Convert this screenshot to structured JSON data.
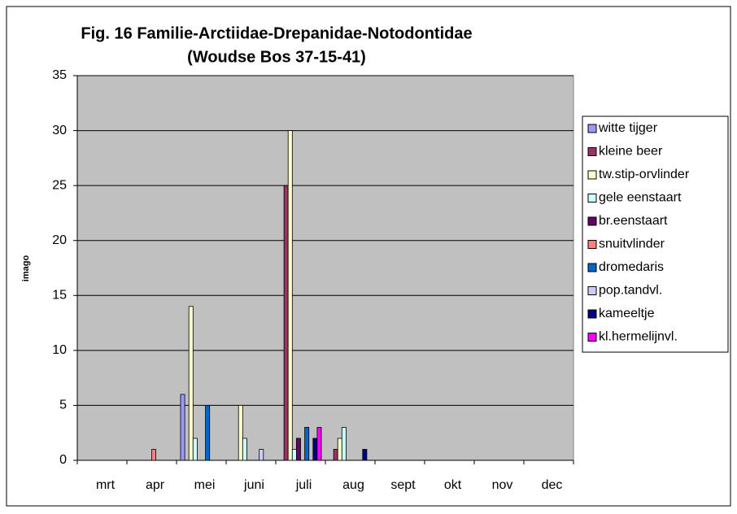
{
  "chart_data": {
    "type": "bar",
    "title": "Fig. 16 Familie-Arctiidae-Drepanidae-Notodontidae",
    "subtitle": "(Woudse Bos 37-15-41)",
    "y_label": "imago",
    "categories": [
      "mrt",
      "apr",
      "mei",
      "juni",
      "juli",
      "aug",
      "sept",
      "okt",
      "nov",
      "dec"
    ],
    "series": [
      {
        "name": "witte tijger",
        "color": "#9999ff",
        "values": [
          0,
          0,
          6,
          0,
          0,
          0,
          0,
          0,
          0,
          0
        ]
      },
      {
        "name": "kleine beer",
        "color": "#993366",
        "values": [
          0,
          0,
          0,
          0,
          25,
          1,
          0,
          0,
          0,
          0
        ]
      },
      {
        "name": "tw.stip-orvlinder",
        "color": "#ffffcc",
        "values": [
          0,
          0,
          14,
          5,
          30,
          2,
          0,
          0,
          0,
          0
        ]
      },
      {
        "name": "gele eenstaart",
        "color": "#ccffff",
        "values": [
          0,
          0,
          2,
          2,
          1,
          3,
          0,
          0,
          0,
          0
        ]
      },
      {
        "name": "br.eenstaart",
        "color": "#660066",
        "values": [
          0,
          0,
          0,
          0,
          2,
          0,
          0,
          0,
          0,
          0
        ]
      },
      {
        "name": "snuitvlinder",
        "color": "#ff8080",
        "values": [
          0,
          1,
          0,
          0,
          0,
          0,
          0,
          0,
          0,
          0
        ]
      },
      {
        "name": "dromedaris",
        "color": "#0066cc",
        "values": [
          0,
          0,
          5,
          0,
          3,
          0,
          0,
          0,
          0,
          0
        ]
      },
      {
        "name": "pop.tandvl.",
        "color": "#ccccff",
        "values": [
          0,
          0,
          0,
          1,
          0,
          0,
          0,
          0,
          0,
          0
        ]
      },
      {
        "name": "kameeltje",
        "color": "#000080",
        "values": [
          0,
          0,
          0,
          0,
          2,
          1,
          0,
          0,
          0,
          0
        ]
      },
      {
        "name": "kl.hermelijnvl.",
        "color": "#ff00ff",
        "values": [
          0,
          0,
          0,
          0,
          3,
          0,
          0,
          0,
          0,
          0
        ]
      }
    ],
    "ylim": [
      0,
      35
    ],
    "yticks": [
      0,
      5,
      10,
      15,
      20,
      25,
      30,
      35
    ],
    "grid": true,
    "legend": "right"
  }
}
